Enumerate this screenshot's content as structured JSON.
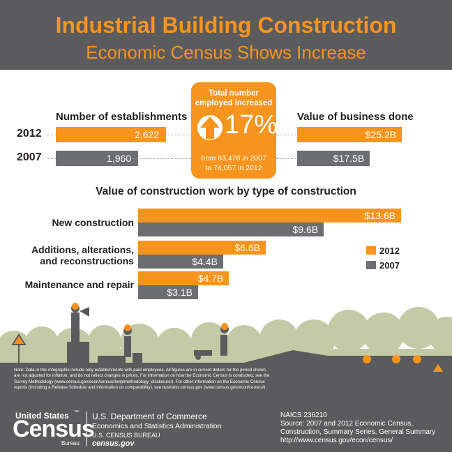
{
  "header": {
    "title": "Industrial Building Construction",
    "subtitle": "Economic Census Shows Increase"
  },
  "establishments": {
    "heading": "Number of establishments",
    "rows": [
      {
        "year": "2012",
        "value": 2622,
        "label": "2,622"
      },
      {
        "year": "2007",
        "value": 1960,
        "label": "1,960"
      }
    ]
  },
  "business": {
    "heading": "Value of business done",
    "rows": [
      {
        "year": "2012",
        "value": 25.2,
        "label": "$25.2B"
      },
      {
        "year": "2007",
        "value": 17.5,
        "label": "$17.5B"
      }
    ]
  },
  "employment": {
    "heading_line1": "Total number",
    "heading_line2": "employed increased",
    "percent": "17%",
    "detail_line1": "from 63,478 in 2007",
    "detail_line2": "to 74,057 in 2012"
  },
  "construction": {
    "heading": "Value of construction work by type of construction",
    "items": [
      {
        "label_line1": "New construction",
        "label_line2": "",
        "v2012": 13.6,
        "l2012": "$13.6B",
        "v2007": 9.6,
        "l2007": "$9.6B"
      },
      {
        "label_line1": "Additions, alterations,",
        "label_line2": "and reconstructions",
        "v2012": 6.6,
        "l2012": "$6.6B",
        "v2007": 4.4,
        "l2007": "$4.4B"
      },
      {
        "label_line1": "Maintenance and repair",
        "label_line2": "",
        "v2012": 4.7,
        "l2012": "$4.7B",
        "v2007": 3.1,
        "l2007": "$3.1B"
      }
    ],
    "legend": [
      {
        "name": "2012",
        "color": "#f7941d"
      },
      {
        "name": "2007",
        "color": "#6d6e71"
      }
    ]
  },
  "colors": {
    "orange": "#f7941d",
    "gray": "#6d6e71",
    "dark": "#5b5b5d",
    "green": "#c4c9a6"
  },
  "footer": {
    "note": "Note: Data in this infographic include only establishments with paid employees. All figures are in current dollars for the period shown, are not adjusted for inflation, and do not reflect changes in prices. For information on how the Economic Census is conducted, see the Survey Methodology (www.census.gov/econ/census/help/methodology_disclosure/). For other information on the Economic Census reports (including a Release Schedule and information on comparability), see business.census.gov (www.census.gov/econ/census/).",
    "logo_line1": "United States",
    "logo_tm": "™",
    "logo_line2": "Census",
    "logo_line3": "Bureau",
    "dept_line1": "U.S. Department of Commerce",
    "dept_line2": "Economics and Statistics Administration",
    "dept_line3": "U.S. CENSUS BUREAU",
    "dept_line4": "census.gov",
    "naics": "NAICS 236210",
    "source_line1": "Source: 2007 and 2012 Economic Census,",
    "source_line2": "Construction, Summary Series, General Summary",
    "source_line3": "http://www.census.gov/econ/census/"
  }
}
